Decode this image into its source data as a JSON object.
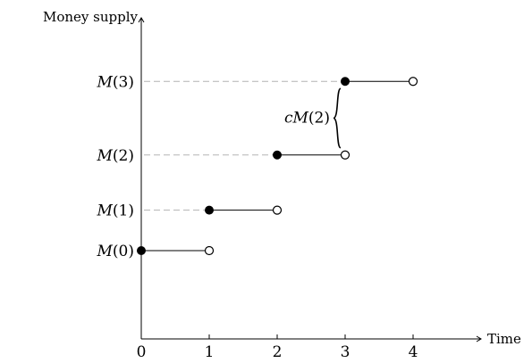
{
  "chart_data": {
    "type": "line",
    "title": "",
    "xlabel": "Time",
    "ylabel": "Money supply",
    "xlim": [
      0,
      5
    ],
    "ylim": [
      -1.2,
      3
    ],
    "x_ticks": [
      "0",
      "1",
      "2",
      "3",
      "4"
    ],
    "grid": false,
    "series": [
      {
        "steps": [
          {
            "label": "M(0)",
            "x_start": 0,
            "x_end": 1,
            "y": 0,
            "start": "closed",
            "end": "open",
            "dashed_guide": false
          },
          {
            "label": "M(1)",
            "x_start": 1,
            "x_end": 2,
            "y": 0.55,
            "start": "closed",
            "end": "open",
            "dashed_guide": true
          },
          {
            "label": "M(2)",
            "x_start": 2,
            "x_end": 3,
            "y": 1.3,
            "start": "closed",
            "end": "open",
            "dashed_guide": true
          },
          {
            "label": "M(3)",
            "x_start": 3,
            "x_end": 4,
            "y": 2.3,
            "start": "closed",
            "end": "open",
            "dashed_guide": true
          }
        ]
      }
    ],
    "annotations": [
      {
        "text": "cM(2)",
        "type": "brace",
        "x": 3,
        "y_from": 1.3,
        "y_to": 2.3
      }
    ]
  }
}
